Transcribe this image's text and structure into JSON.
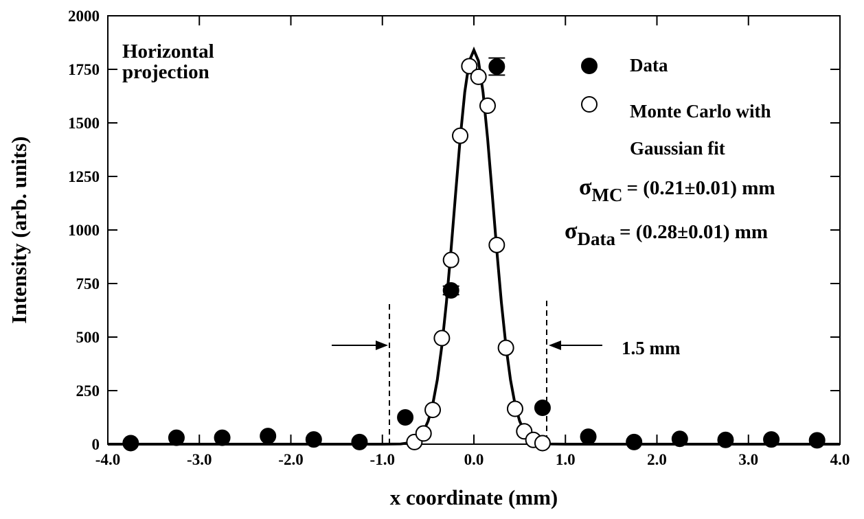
{
  "chart_data": {
    "type": "scatter",
    "xlabel": "x coordinate (mm)",
    "ylabel": "Intensity (arb. units)",
    "xlim": [
      -4,
      4
    ],
    "ylim": [
      0,
      2000
    ],
    "xticks": [
      {
        "value": -4,
        "label": "-4.0"
      },
      {
        "value": -3,
        "label": "-3.0"
      },
      {
        "value": -2,
        "label": "-2.0"
      },
      {
        "value": -1,
        "label": "-1.0"
      },
      {
        "value": 0,
        "label": "0.0"
      },
      {
        "value": 1,
        "label": "1.0"
      },
      {
        "value": 2,
        "label": "2.0"
      },
      {
        "value": 3,
        "label": "3.0"
      },
      {
        "value": 4,
        "label": "4.0"
      }
    ],
    "yticks": [
      0,
      250,
      500,
      750,
      1000,
      1250,
      1500,
      1750,
      2000
    ],
    "series": [
      {
        "name": "Data",
        "color": "#000000",
        "marker": "filled",
        "x": [
          -3.75,
          -3.25,
          -2.75,
          -2.25,
          -1.75,
          -1.25,
          -0.75,
          -0.25,
          0.25,
          0.75,
          1.25,
          1.75,
          2.25,
          2.75,
          3.25,
          3.75
        ],
        "values": [
          5,
          30,
          30,
          38,
          22,
          10,
          125,
          718,
          1763,
          170,
          35,
          10,
          25,
          20,
          22,
          18
        ],
        "errors": [
          null,
          null,
          null,
          null,
          null,
          null,
          null,
          20,
          null,
          null,
          null,
          null,
          null,
          null,
          null,
          null
        ],
        "errors_upper": [
          null,
          null,
          null,
          null,
          null,
          null,
          null,
          null,
          40,
          null,
          null,
          null,
          null,
          null,
          null,
          null
        ]
      },
      {
        "name": "Monte Carlo with Gaussian fit",
        "color": "#000000",
        "marker": "open",
        "x": [
          -0.65,
          -0.55,
          -0.45,
          -0.35,
          -0.25,
          -0.15,
          -0.05,
          0.05,
          0.15,
          0.25,
          0.35,
          0.45,
          0.55,
          0.65,
          0.75
        ],
        "values": [
          10,
          50,
          160,
          495,
          860,
          1440,
          1765,
          1715,
          1580,
          930,
          450,
          165,
          60,
          20,
          5
        ]
      }
    ],
    "fit": {
      "color": "#000000",
      "x": [
        -4,
        -1,
        -0.8,
        -0.7,
        -0.6,
        -0.55,
        -0.5,
        -0.45,
        -0.4,
        -0.35,
        -0.3,
        -0.25,
        -0.2,
        -0.15,
        -0.1,
        -0.05,
        0,
        0.05,
        0.1,
        0.15,
        0.2,
        0.25,
        0.3,
        0.35,
        0.4,
        0.45,
        0.5,
        0.55,
        0.6,
        0.7,
        0.8,
        1,
        4
      ],
      "values": [
        0,
        0,
        1,
        7,
        31,
        60,
        108,
        185,
        300,
        459,
        663,
        906,
        1169,
        1426,
        1643,
        1789,
        1840,
        1789,
        1643,
        1426,
        1169,
        906,
        663,
        459,
        300,
        185,
        108,
        60,
        31,
        7,
        1,
        0,
        0
      ]
    },
    "annotations": {
      "panel": "Horizontal projection",
      "sigma_mc": {
        "symbol": "σ",
        "subscript": "MC",
        "text": "= (0.21±0.01) mm"
      },
      "sigma_data": {
        "symbol": "σ",
        "subscript": "Data",
        "text": "= (0.28±0.01) mm"
      },
      "width": "1.5 mm"
    }
  }
}
